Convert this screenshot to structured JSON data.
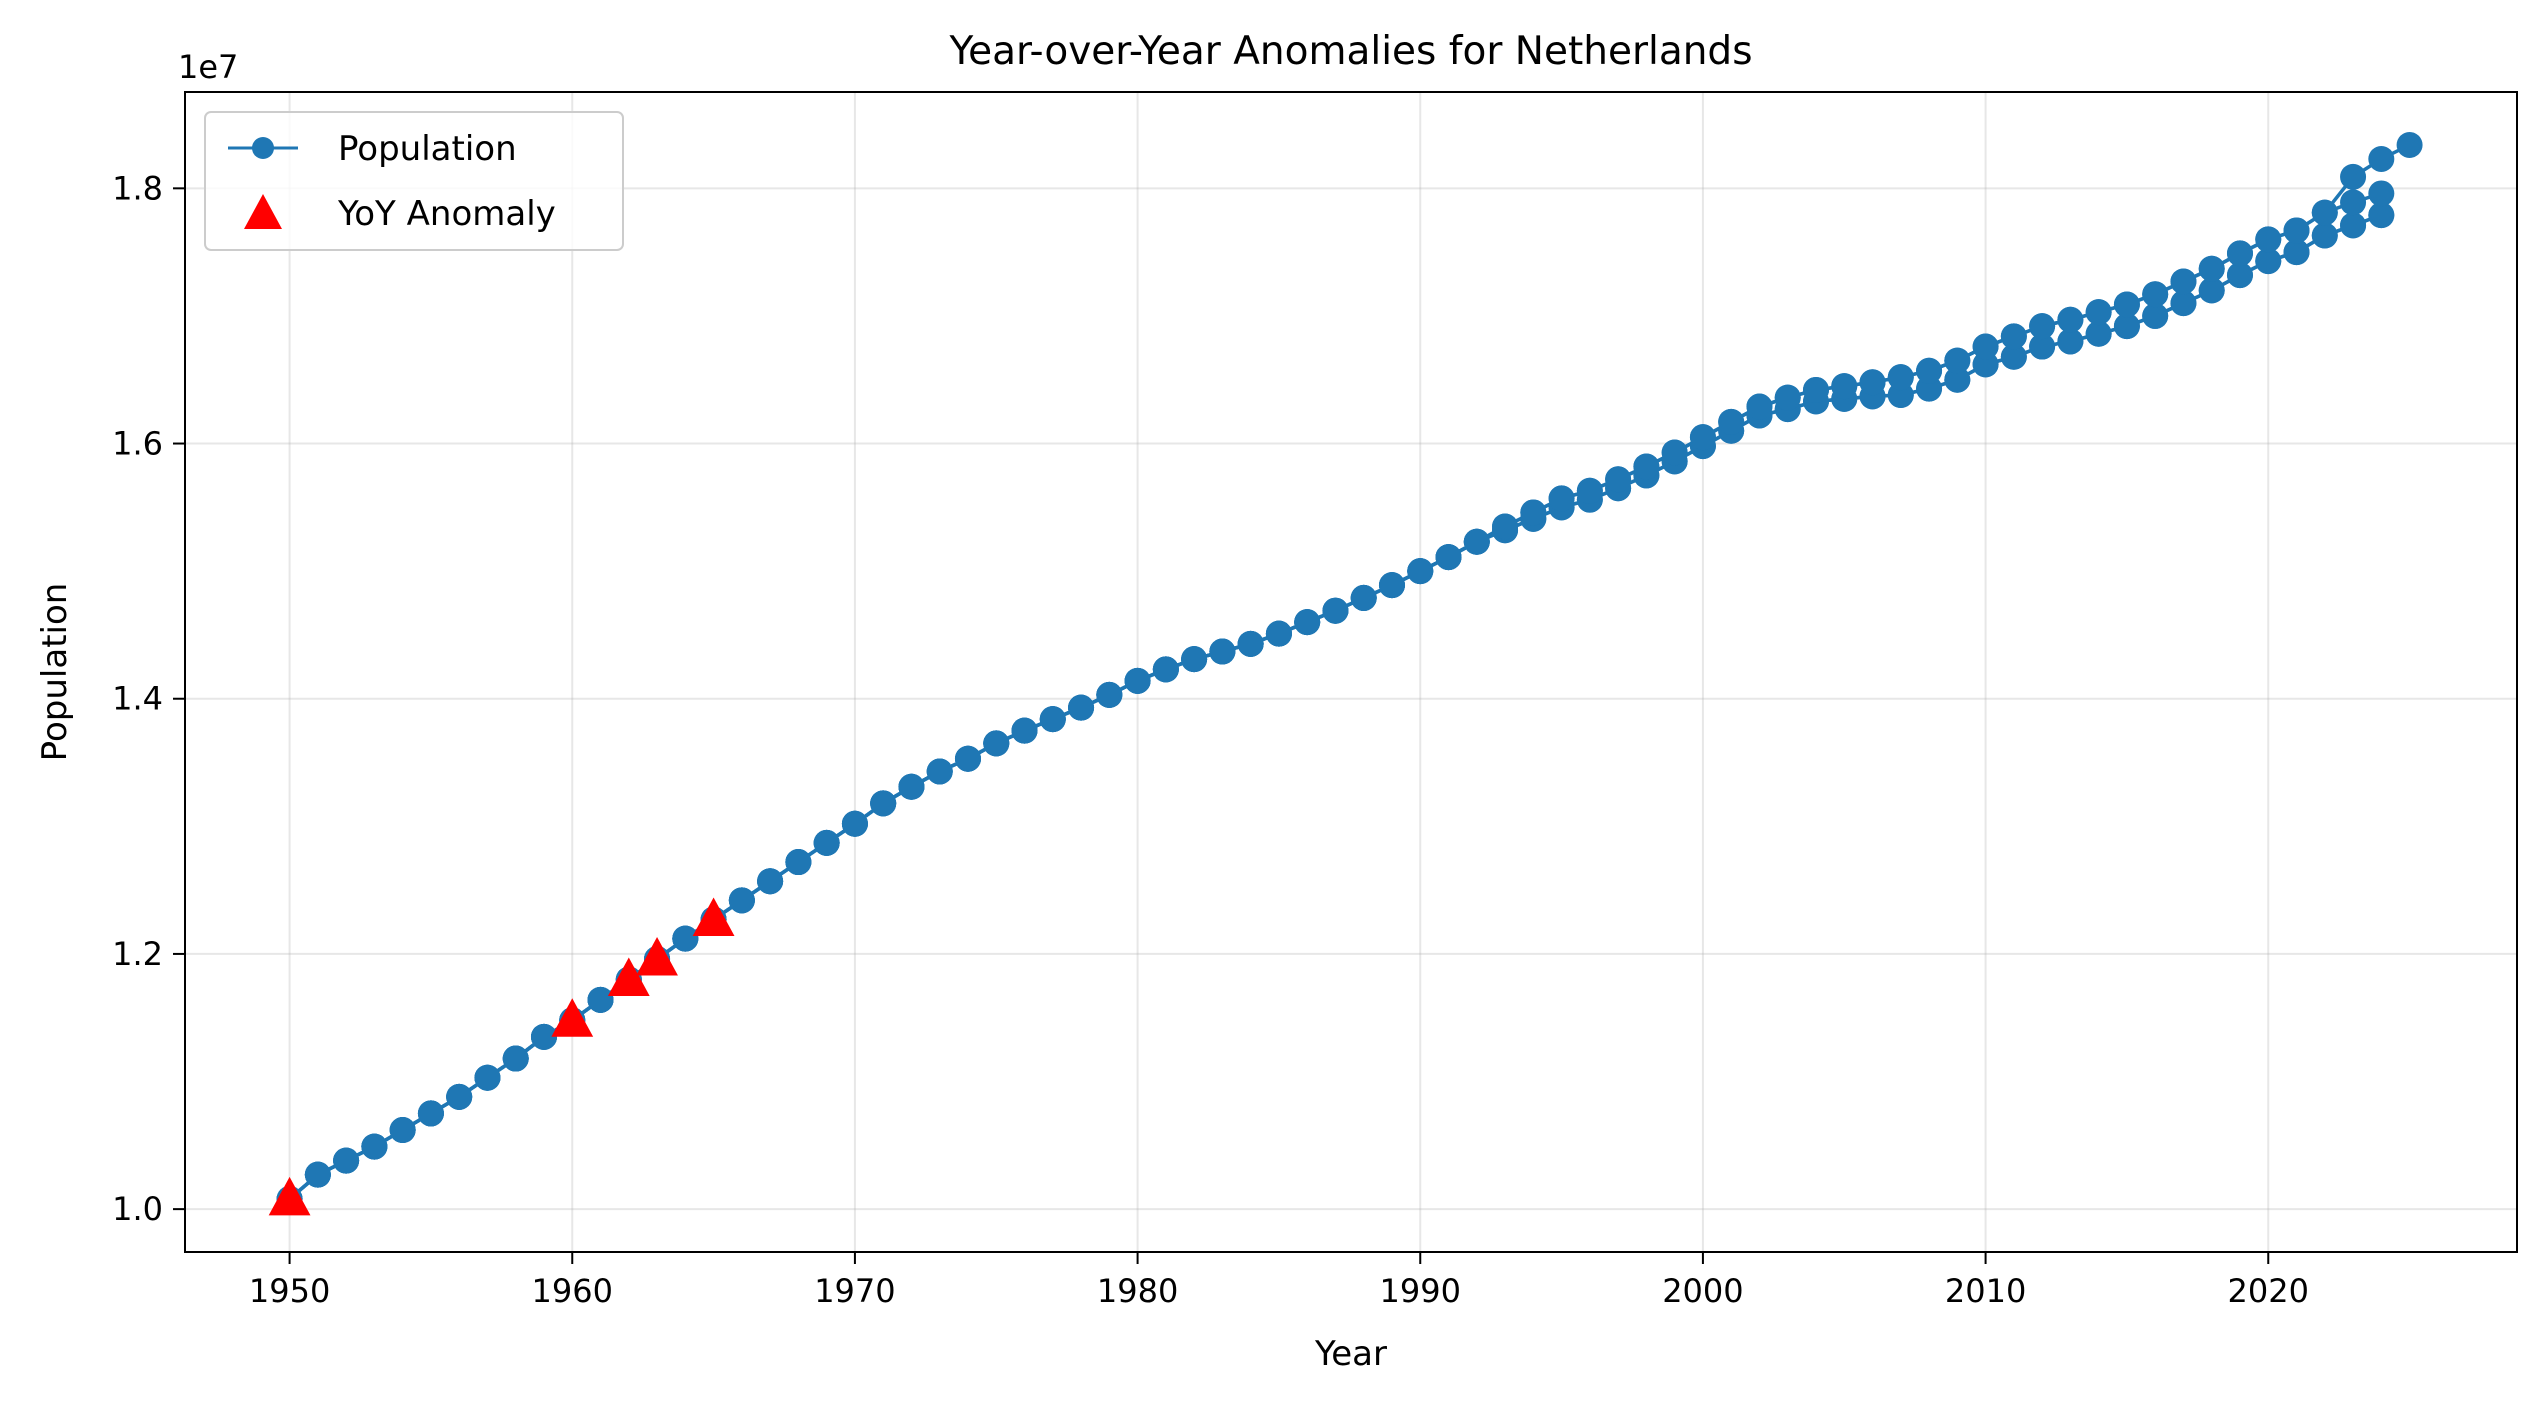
{
  "chart_data": {
    "type": "line",
    "title": "Year-over-Year Anomalies for Netherlands",
    "xlabel": "Year",
    "ylabel": "Population",
    "y_offset_label": "1e7",
    "xlim": [
      1946.3,
      1028.8
    ],
    "ylim": [
      0.9664,
      1.8755
    ],
    "y_unit_multiplier": 10000000,
    "x_ticks": [
      1950,
      1960,
      1970,
      1980,
      1990,
      2000,
      2010,
      2020
    ],
    "x_tick_labels": [
      "1950",
      "1960",
      "1970",
      "1980",
      "1990",
      "2000",
      "2010",
      "2020"
    ],
    "y_ticks": [
      1.0,
      1.2,
      1.4,
      1.6,
      1.8
    ],
    "y_tick_labels": [
      "1.0",
      "1.2",
      "1.4",
      "1.6",
      "1.8"
    ],
    "grid": true,
    "legend_position": "top-left",
    "colors": {
      "population": "#1f77b4",
      "anomaly": "#ff0000"
    },
    "series": [
      {
        "name": "Population",
        "style": "line-with-circle-markers",
        "segments": [
          {
            "x": [
              1950,
              1951,
              1952,
              1953,
              1954,
              1955,
              1956,
              1957,
              1958,
              1959,
              1960,
              1961,
              1962,
              1963,
              1964,
              1965,
              1966,
              1967,
              1968,
              1969,
              1970,
              1971,
              1972,
              1973,
              1974,
              1975,
              1976,
              1977,
              1978,
              1979,
              1980,
              1981,
              1982,
              1983,
              1984,
              1985,
              1986,
              1987,
              1988,
              1989,
              1990,
              1991,
              1992,
              1993,
              1994,
              1995,
              1996,
              1997,
              1998,
              1999,
              2000,
              2001,
              2002,
              2003,
              2004,
              2005,
              2006,
              2007,
              2008,
              2009,
              2010,
              2011,
              2012,
              2013,
              2014,
              2015,
              2016,
              2017,
              2018,
              2019,
              2020,
              2021,
              2022,
              2023,
              2024
            ],
            "y": [
              1.008,
              1.027,
              1.038,
              1.049,
              1.062,
              1.075,
              1.088,
              1.103,
              1.118,
              1.135,
              1.148,
              1.164,
              1.18,
              1.196,
              1.212,
              1.227,
              1.242,
              1.257,
              1.272,
              1.287,
              1.302,
              1.318,
              1.331,
              1.343,
              1.353,
              1.365,
              1.375,
              1.384,
              1.393,
              1.403,
              1.414,
              1.423,
              1.431,
              1.437,
              1.443,
              1.451,
              1.46,
              1.469,
              1.479,
              1.489,
              1.5,
              1.511,
              1.523,
              1.532,
              1.541,
              1.55,
              1.556,
              1.565,
              1.575,
              1.586,
              1.598,
              1.61,
              1.622,
              1.627,
              1.633,
              1.635,
              1.637,
              1.638,
              1.643,
              1.65,
              1.662,
              1.668,
              1.676,
              1.68,
              1.686,
              1.692,
              1.7,
              1.71,
              1.72,
              1.732,
              1.743,
              1.75,
              1.763,
              1.771,
              1.779
            ]
          },
          {
            "x": [
              1950,
              1951,
              1952,
              1953,
              1954,
              1955,
              1956,
              1957,
              1958,
              1959,
              1960,
              1961,
              1962,
              1963,
              1964,
              1965,
              1966,
              1967,
              1968,
              1969,
              1970,
              1971,
              1972,
              1973,
              1974,
              1975,
              1976,
              1977,
              1978,
              1979,
              1980,
              1981,
              1982,
              1983,
              1984,
              1985,
              1986,
              1987,
              1988,
              1989,
              1990,
              1991,
              1992,
              1993,
              1994,
              1995,
              1996,
              1997,
              1998,
              1999,
              2000,
              2001,
              2002,
              2003,
              2004,
              2005,
              2006,
              2007,
              2008,
              2009,
              2010,
              2011,
              2012,
              2013,
              2014,
              2015,
              2016,
              2017,
              2018,
              2019,
              2020,
              2021,
              2022,
              2023,
              2024
            ],
            "y": [
              1.008,
              1.027,
              1.038,
              1.049,
              1.062,
              1.075,
              1.088,
              1.103,
              1.118,
              1.135,
              1.148,
              1.164,
              1.18,
              1.196,
              1.212,
              1.227,
              1.242,
              1.257,
              1.272,
              1.287,
              1.302,
              1.318,
              1.331,
              1.343,
              1.353,
              1.365,
              1.375,
              1.384,
              1.393,
              1.403,
              1.414,
              1.423,
              1.431,
              1.437,
              1.443,
              1.451,
              1.46,
              1.469,
              1.479,
              1.489,
              1.5,
              1.511,
              1.523,
              1.532,
              1.541,
              1.55,
              1.556,
              1.565,
              1.575,
              1.586,
              1.598,
              1.61,
              1.622,
              1.627,
              1.633,
              1.635,
              1.637,
              1.638,
              1.643,
              1.65,
              1.662,
              1.668,
              1.676,
              1.68,
              1.686,
              1.692,
              1.7,
              1.71,
              1.72,
              1.732,
              1.743,
              1.75,
              1.763,
              1.771,
              1.779
            ]
          },
          {
            "x": [
              1950,
              1951,
              1952,
              1953,
              1954,
              1955,
              1956,
              1957,
              1958,
              1959,
              1960,
              1961,
              1962,
              1963,
              1964,
              1965,
              1966,
              1967,
              1968,
              1969,
              1970,
              1971,
              1972,
              1973,
              1974,
              1975,
              1976,
              1977,
              1978,
              1979,
              1980,
              1981,
              1982,
              1983,
              1984,
              1985,
              1986,
              1987,
              1988,
              1989,
              1990,
              1991,
              1992,
              1993,
              1994,
              1995,
              1996,
              1997,
              1998,
              1999,
              2000,
              2001,
              2002,
              2003,
              2004,
              2005,
              2006,
              2007,
              2008,
              2009,
              2010,
              2011,
              2012,
              2013,
              2014,
              2015,
              2016,
              2017,
              2018,
              2019,
              2020,
              2021,
              2022,
              2023,
              2024
            ],
            "y": [
              1.008,
              1.027,
              1.038,
              1.049,
              1.062,
              1.075,
              1.088,
              1.103,
              1.118,
              1.135,
              1.148,
              1.164,
              1.18,
              1.196,
              1.212,
              1.227,
              1.242,
              1.257,
              1.272,
              1.287,
              1.302,
              1.318,
              1.331,
              1.343,
              1.353,
              1.365,
              1.375,
              1.384,
              1.393,
              1.403,
              1.414,
              1.423,
              1.431,
              1.437,
              1.443,
              1.451,
              1.46,
              1.469,
              1.479,
              1.489,
              1.5,
              1.511,
              1.523,
              1.535,
              1.546,
              1.557,
              1.563,
              1.572,
              1.582,
              1.593,
              1.605,
              1.617,
              1.629,
              1.636,
              1.642,
              1.645,
              1.648,
              1.652,
              1.657,
              1.665,
              1.676,
              1.684,
              1.692,
              1.697,
              1.703,
              1.709,
              1.717,
              1.727,
              1.737,
              1.749,
              1.76,
              1.767,
              1.781,
              1.789,
              1.796
            ]
          },
          {
            "x": [
              1950,
              1951,
              1952,
              1953,
              1954,
              1955,
              1956,
              1957,
              1958,
              1959,
              1960,
              1961,
              1962,
              1963,
              1964,
              1965,
              1966,
              1967,
              1968,
              1969,
              1970,
              1971,
              1972,
              1973,
              1974,
              1975,
              1976,
              1977,
              1978,
              1979,
              1980,
              1981,
              1982,
              1983,
              1984,
              1985,
              1986,
              1987,
              1988,
              1989,
              1990,
              1991,
              1992,
              1993,
              1994,
              1995,
              1996,
              1997,
              1998,
              1999,
              2000,
              2001,
              2002,
              2003,
              2004,
              2005,
              2006,
              2007,
              2008,
              2009,
              2010,
              2011,
              2012,
              2013,
              2014,
              2015,
              2016,
              2017,
              2018,
              2019,
              2020,
              2021,
              2022,
              2023,
              2024,
              2025
            ],
            "y": [
              1.008,
              1.027,
              1.038,
              1.049,
              1.062,
              1.075,
              1.088,
              1.103,
              1.118,
              1.135,
              1.148,
              1.164,
              1.18,
              1.196,
              1.212,
              1.227,
              1.242,
              1.257,
              1.272,
              1.287,
              1.302,
              1.318,
              1.331,
              1.343,
              1.353,
              1.365,
              1.375,
              1.384,
              1.393,
              1.403,
              1.414,
              1.423,
              1.431,
              1.437,
              1.443,
              1.451,
              1.46,
              1.469,
              1.479,
              1.489,
              1.5,
              1.511,
              1.523,
              1.535,
              1.546,
              1.557,
              1.563,
              1.572,
              1.582,
              1.593,
              1.605,
              1.617,
              1.629,
              1.636,
              1.642,
              1.645,
              1.648,
              1.652,
              1.657,
              1.665,
              1.676,
              1.684,
              1.692,
              1.697,
              1.703,
              1.709,
              1.717,
              1.727,
              1.737,
              1.749,
              1.76,
              1.767,
              1.781,
              1.809,
              1.823,
              1.834
            ]
          }
        ]
      },
      {
        "name": "YoY Anomaly",
        "style": "triangle-markers",
        "x": [
          1950,
          1960,
          1962,
          1963,
          1965
        ],
        "y": [
          1.008,
          1.148,
          1.18,
          1.196,
          1.227
        ]
      }
    ]
  }
}
